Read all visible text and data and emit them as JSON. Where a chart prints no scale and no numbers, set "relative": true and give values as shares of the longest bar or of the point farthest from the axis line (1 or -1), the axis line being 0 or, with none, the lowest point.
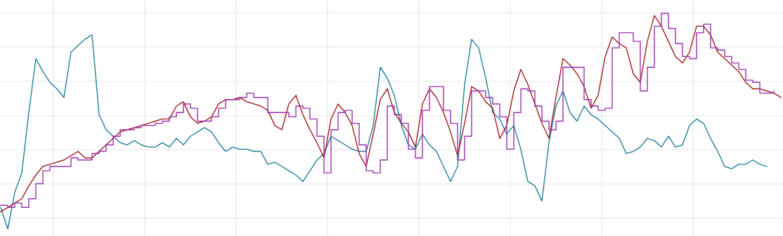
{
  "chart_data": {
    "type": "line",
    "relative": true,
    "grid": true,
    "categories": [
      null,
      null,
      null,
      null,
      null,
      null,
      null,
      null,
      null,
      null,
      null,
      null,
      null,
      null,
      null,
      null,
      null,
      null,
      null,
      null,
      null,
      null,
      null,
      null,
      null,
      null,
      null,
      null,
      null,
      null,
      null,
      null,
      null,
      null,
      null,
      null,
      null,
      null,
      null,
      null,
      null,
      null,
      null,
      null,
      null,
      null,
      null,
      null,
      null,
      null,
      null,
      null,
      null,
      null,
      null,
      null,
      null,
      null,
      null,
      null,
      null,
      null,
      null,
      null,
      null,
      null,
      null,
      null,
      null,
      null,
      null,
      null,
      null,
      null,
      null,
      null,
      null,
      null,
      null,
      null,
      null,
      null,
      null,
      null,
      null,
      null,
      null,
      null,
      null,
      null,
      null,
      null,
      null,
      null,
      null,
      null,
      null,
      null,
      null,
      null,
      null,
      null,
      null,
      null,
      null,
      null,
      null,
      null,
      null,
      null,
      null,
      null
    ],
    "series": [
      {
        "color": "#1f7f9a",
        "values": [
          0.1,
          0.0,
          0.17,
          0.26,
          0.54,
          0.79,
          0.73,
          0.68,
          0.65,
          0.61,
          0.82,
          0.85,
          0.88,
          0.9,
          0.53,
          0.46,
          0.43,
          0.4,
          0.39,
          0.41,
          0.39,
          0.38,
          0.38,
          0.4,
          0.38,
          0.42,
          0.39,
          0.43,
          0.45,
          0.47,
          0.45,
          0.4,
          0.36,
          0.38,
          0.37,
          0.37,
          0.36,
          0.36,
          0.3,
          0.31,
          0.29,
          0.27,
          0.25,
          0.22,
          0.27,
          0.32,
          0.35,
          0.43,
          0.41,
          0.39,
          0.37,
          0.36,
          0.36,
          0.48,
          0.75,
          0.7,
          0.62,
          0.48,
          0.39,
          0.37,
          0.44,
          0.39,
          0.36,
          0.29,
          0.22,
          0.29,
          0.67,
          0.88,
          0.84,
          0.7,
          0.54,
          0.51,
          0.44,
          0.48,
          0.37,
          0.22,
          0.2,
          0.13,
          0.4,
          0.57,
          0.64,
          0.54,
          0.5,
          0.57,
          0.53,
          0.51,
          0.48,
          0.45,
          0.42,
          0.35,
          0.36,
          0.38,
          0.42,
          0.41,
          0.38,
          0.43,
          0.38,
          0.39,
          0.48,
          0.51,
          0.49,
          0.42,
          0.36,
          0.29,
          0.28,
          0.3,
          0.3,
          0.32,
          0.3,
          0.29,
          null,
          null
        ]
      },
      {
        "color": "#a01a1a",
        "values": [
          0.08,
          0.1,
          0.12,
          0.14,
          0.2,
          0.25,
          0.29,
          0.3,
          0.31,
          0.32,
          0.34,
          0.36,
          0.33,
          0.33,
          0.36,
          0.39,
          0.42,
          0.45,
          0.46,
          0.47,
          0.48,
          0.49,
          0.5,
          0.51,
          0.51,
          0.57,
          0.59,
          0.52,
          0.49,
          0.5,
          0.52,
          0.58,
          0.6,
          0.6,
          0.61,
          0.59,
          0.58,
          0.57,
          0.55,
          0.48,
          0.46,
          0.58,
          0.62,
          0.53,
          0.46,
          0.4,
          0.33,
          0.51,
          0.58,
          0.54,
          0.48,
          0.35,
          0.29,
          0.44,
          0.6,
          0.65,
          0.54,
          0.49,
          0.45,
          0.38,
          0.58,
          0.65,
          0.61,
          0.54,
          0.45,
          0.34,
          0.49,
          0.66,
          0.64,
          0.59,
          0.56,
          0.42,
          0.48,
          0.64,
          0.74,
          0.67,
          0.58,
          0.49,
          0.42,
          0.61,
          0.79,
          0.76,
          0.72,
          0.66,
          0.56,
          0.62,
          0.8,
          0.89,
          0.86,
          0.84,
          0.72,
          0.68,
          0.87,
          0.99,
          0.94,
          0.87,
          0.8,
          0.77,
          0.82,
          0.94,
          0.94,
          0.9,
          0.82,
          0.79,
          0.76,
          0.73,
          0.68,
          0.65,
          0.65,
          0.64,
          0.63,
          0.61
        ]
      },
      {
        "type": "step",
        "color": "#9a2fb0",
        "values": [
          0.11,
          0.1,
          0.12,
          0.1,
          0.14,
          0.21,
          0.27,
          0.29,
          0.29,
          0.29,
          0.33,
          0.32,
          0.32,
          0.35,
          0.36,
          0.39,
          0.43,
          0.46,
          0.46,
          0.47,
          0.48,
          0.48,
          0.49,
          0.5,
          0.52,
          0.54,
          0.58,
          0.56,
          0.5,
          0.5,
          0.52,
          0.56,
          0.6,
          0.6,
          0.61,
          0.63,
          0.61,
          0.61,
          0.54,
          0.54,
          0.54,
          0.52,
          0.57,
          0.56,
          0.51,
          0.43,
          0.26,
          0.46,
          0.54,
          0.55,
          0.49,
          0.39,
          0.27,
          0.26,
          0.32,
          0.57,
          0.53,
          0.49,
          0.37,
          0.33,
          0.55,
          0.66,
          0.66,
          0.55,
          0.49,
          0.32,
          0.43,
          0.64,
          0.64,
          0.61,
          0.58,
          0.52,
          0.37,
          0.54,
          0.65,
          0.64,
          0.57,
          0.5,
          0.46,
          0.5,
          0.75,
          0.75,
          0.75,
          0.6,
          0.57,
          0.55,
          0.56,
          0.84,
          0.91,
          0.91,
          0.87,
          0.64,
          0.75,
          0.94,
          1.0,
          0.93,
          0.86,
          0.8,
          0.79,
          0.91,
          0.95,
          0.84,
          0.83,
          0.8,
          0.77,
          0.74,
          0.69,
          0.68,
          0.63,
          0.63,
          0.64,
          null
        ]
      }
    ]
  }
}
